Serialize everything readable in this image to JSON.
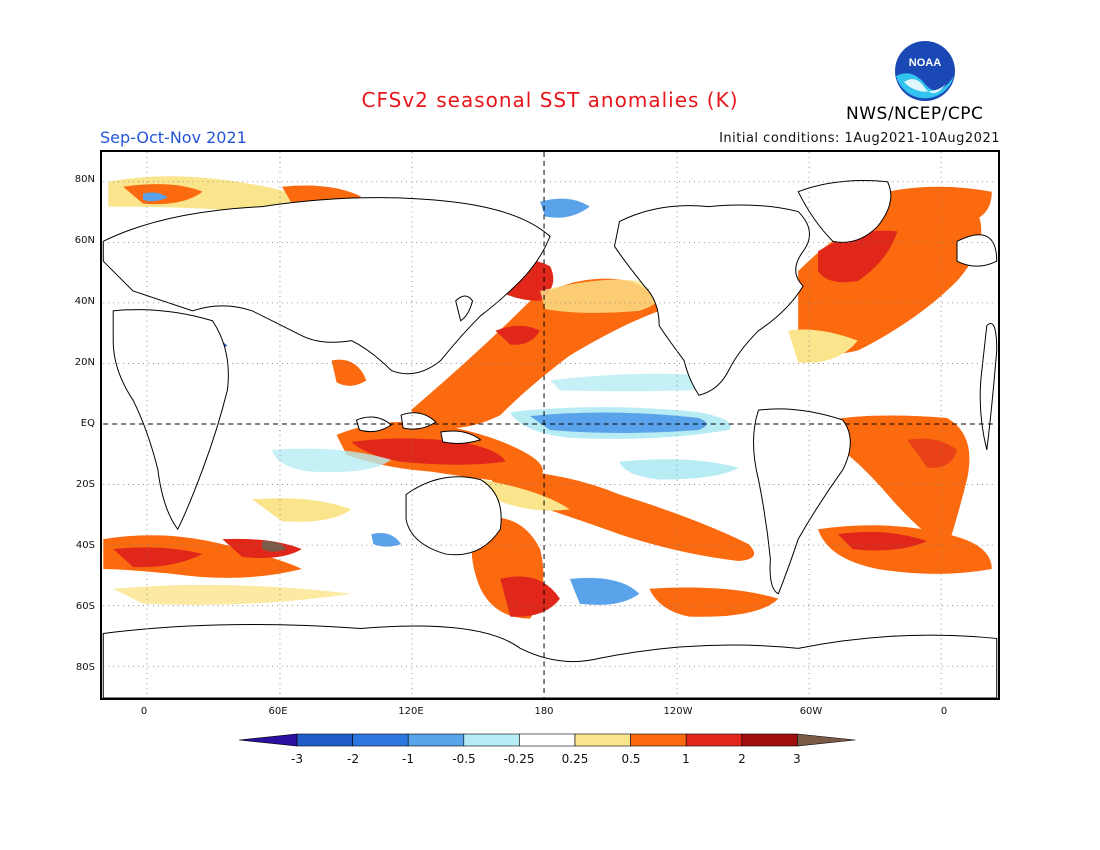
{
  "header": {
    "title": "CFSv2 seasonal SST anomalies (K)",
    "period": "Sep-Oct-Nov 2021",
    "initial_conditions": "Initial conditions: 1Aug2021-10Aug2021",
    "agency": "NWS/NCEP/CPC",
    "logo_text": "NOAA"
  },
  "map": {
    "lat_labels": [
      "80N",
      "60N",
      "40N",
      "20N",
      "EQ",
      "20S",
      "40S",
      "60S",
      "80S"
    ],
    "lon_labels": [
      "0",
      "60E",
      "120E",
      "180",
      "120W",
      "60W",
      "0"
    ],
    "reference_lines": [
      "equator",
      "dateline"
    ]
  },
  "colorbar": {
    "labels": [
      "-3",
      "-2",
      "-1",
      "-0.5",
      "-0.25",
      "0.25",
      "0.5",
      "1",
      "2",
      "3"
    ],
    "colors": [
      "#2a0fa0",
      "#1f5bc9",
      "#2e77e0",
      "#5aa3ea",
      "#b7ecf4",
      "#ffffff",
      "#fbe58c",
      "#fb6a0f",
      "#e0271a",
      "#a10d0d",
      "#7b5a48"
    ]
  }
}
